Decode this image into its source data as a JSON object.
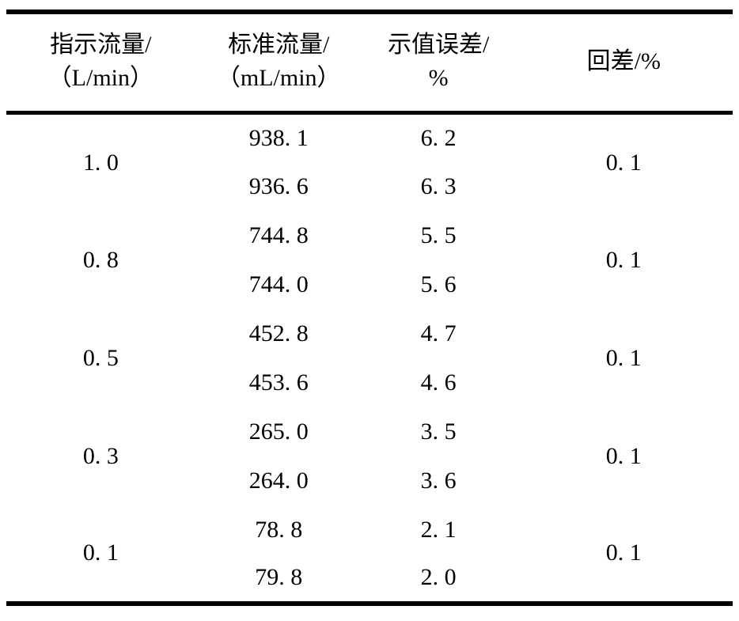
{
  "document": {
    "background_color": "#ffffff",
    "text_color": "#000000",
    "rule_color": "#000000",
    "type": "calibration-data-table"
  },
  "table": {
    "columns": [
      {
        "id": "indicated_flow",
        "label_line1": "指示流量/",
        "label_line2": "（L/min）"
      },
      {
        "id": "standard_flow",
        "label_line1": "标准流量/",
        "label_line2": "（mL/min）"
      },
      {
        "id": "indication_error",
        "label_line1": "示值误差/",
        "label_line2": "%"
      },
      {
        "id": "hysteresis",
        "label_line1": "回差/%"
      }
    ],
    "groups": [
      {
        "indicated_flow": "1. 0",
        "hysteresis": "0. 1",
        "measurements": [
          {
            "standard_flow": "938. 1",
            "indication_error": "6. 2"
          },
          {
            "standard_flow": "936. 6",
            "indication_error": "6. 3"
          }
        ]
      },
      {
        "indicated_flow": "0. 8",
        "hysteresis": "0. 1",
        "measurements": [
          {
            "standard_flow": "744. 8",
            "indication_error": "5. 5"
          },
          {
            "standard_flow": "744. 0",
            "indication_error": "5. 6"
          }
        ]
      },
      {
        "indicated_flow": "0. 5",
        "hysteresis": "0. 1",
        "measurements": [
          {
            "standard_flow": "452. 8",
            "indication_error": "4. 7"
          },
          {
            "standard_flow": "453. 6",
            "indication_error": "4. 6"
          }
        ]
      },
      {
        "indicated_flow": "0. 3",
        "hysteresis": "0. 1",
        "measurements": [
          {
            "standard_flow": "265. 0",
            "indication_error": "3. 5"
          },
          {
            "standard_flow": "264. 0",
            "indication_error": "3. 6"
          }
        ]
      },
      {
        "indicated_flow": "0. 1",
        "hysteresis": "0. 1",
        "measurements": [
          {
            "standard_flow": "78. 8",
            "indication_error": "2. 1"
          },
          {
            "standard_flow": "79. 8",
            "indication_error": "2. 0"
          }
        ]
      }
    ]
  }
}
